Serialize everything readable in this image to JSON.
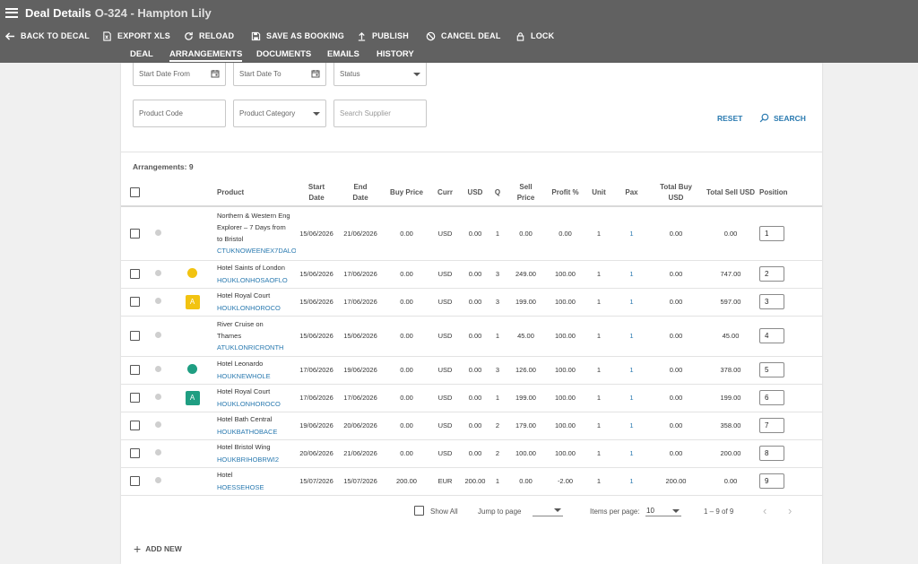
{
  "header": {
    "title": "Deal Details",
    "subtitle": "O-324 - Hampton Lily"
  },
  "toolbar": [
    {
      "label": "BACK TO DECAL",
      "icon": "arrow-left-icon"
    },
    {
      "label": "EXPORT XLS",
      "icon": "export-xls-icon"
    },
    {
      "label": "RELOAD",
      "icon": "reload-icon"
    },
    {
      "label": "SAVE AS BOOKING",
      "icon": "save-icon"
    },
    {
      "label": "PUBLISH",
      "icon": "upload-icon"
    },
    {
      "label": "CANCEL DEAL",
      "icon": "cancel-icon"
    },
    {
      "label": "LOCK",
      "icon": "lock-icon"
    }
  ],
  "tabs": [
    {
      "label": "DEAL"
    },
    {
      "label": "ARRANGEMENTS",
      "active": true
    },
    {
      "label": "DOCUMENTS"
    },
    {
      "label": "EMAILS"
    },
    {
      "label": "HISTORY"
    }
  ],
  "filters": {
    "start_date_from": "Start Date From",
    "start_date_to": "Start Date To",
    "status": "Status",
    "product_code": "Product Code",
    "product_category": "Product Category",
    "search_supplier": "Search Supplier",
    "reset": "RESET",
    "search": "SEARCH"
  },
  "arrangements_label": "Arrangements: 9",
  "columns": {
    "product": "Product",
    "start_date_1": "Start",
    "start_date_2": "Date",
    "end_date_1": "End",
    "end_date_2": "Date",
    "buy_price": "Buy Price",
    "curr": "Curr",
    "usd": "USD",
    "q": "Q",
    "sell_price_1": "Sell",
    "sell_price_2": "Price",
    "profit": "Profit %",
    "unit": "Unit",
    "pax": "Pax",
    "total_buy_1": "Total Buy",
    "total_buy_2": "USD",
    "total_sell": "Total Sell USD",
    "position": "Position"
  },
  "colors": {
    "yellow": "#f2c311",
    "teal": "#1f9e82",
    "link": "#2a7ab0",
    "header_bg": "#616161"
  },
  "rows": [
    {
      "name_lines": [
        "Northern & Western Eng",
        "Explorer – 7 Days from",
        "to Bristol"
      ],
      "code": "CTUKNOWEENEX7DALO",
      "start": "15/06/2026",
      "end": "21/06/2026",
      "buy": "0.00",
      "curr": "USD",
      "usd": "0.00",
      "q": "1",
      "sell": "0.00",
      "profit": "0.00",
      "unit": "1",
      "pax": "1",
      "total_buy": "0.00",
      "total_sell": "0.00",
      "position": "1",
      "marker": "none"
    },
    {
      "name_lines": [
        "Hotel Saints of London"
      ],
      "code": "HOUKLONHOSAOFLO",
      "start": "15/06/2026",
      "end": "17/06/2026",
      "buy": "0.00",
      "curr": "USD",
      "usd": "0.00",
      "q": "3",
      "sell": "249.00",
      "profit": "100.00",
      "unit": "1",
      "pax": "1",
      "total_buy": "0.00",
      "total_sell": "747.00",
      "position": "2",
      "marker": "yellow-dot"
    },
    {
      "name_lines": [
        "Hotel Royal Court"
      ],
      "code": "HOUKLONHOROCO",
      "start": "15/06/2026",
      "end": "17/06/2026",
      "buy": "0.00",
      "curr": "USD",
      "usd": "0.00",
      "q": "3",
      "sell": "199.00",
      "profit": "100.00",
      "unit": "1",
      "pax": "1",
      "total_buy": "0.00",
      "total_sell": "597.00",
      "position": "3",
      "marker": "yellow-badge",
      "badge": "A"
    },
    {
      "name_lines": [
        "River Cruise on",
        "Thames"
      ],
      "code": "ATUKLONRICRONTH",
      "start": "15/06/2026",
      "end": "15/06/2026",
      "buy": "0.00",
      "curr": "USD",
      "usd": "0.00",
      "q": "1",
      "sell": "45.00",
      "profit": "100.00",
      "unit": "1",
      "pax": "1",
      "total_buy": "0.00",
      "total_sell": "45.00",
      "position": "4",
      "marker": "none"
    },
    {
      "name_lines": [
        "Hotel Leonardo"
      ],
      "code": "HOUKNEWHOLE",
      "start": "17/06/2026",
      "end": "19/06/2026",
      "buy": "0.00",
      "curr": "USD",
      "usd": "0.00",
      "q": "3",
      "sell": "126.00",
      "profit": "100.00",
      "unit": "1",
      "pax": "1",
      "total_buy": "0.00",
      "total_sell": "378.00",
      "position": "5",
      "marker": "teal-dot"
    },
    {
      "name_lines": [
        "Hotel Royal Court"
      ],
      "code": "HOUKLONHOROCO",
      "start": "17/06/2026",
      "end": "17/06/2026",
      "buy": "0.00",
      "curr": "USD",
      "usd": "0.00",
      "q": "1",
      "sell": "199.00",
      "profit": "100.00",
      "unit": "1",
      "pax": "1",
      "total_buy": "0.00",
      "total_sell": "199.00",
      "position": "6",
      "marker": "teal-badge",
      "badge": "A"
    },
    {
      "name_lines": [
        "Hotel Bath Central"
      ],
      "code": "HOUKBATHOBACE",
      "start": "19/06/2026",
      "end": "20/06/2026",
      "buy": "0.00",
      "curr": "USD",
      "usd": "0.00",
      "q": "2",
      "sell": "179.00",
      "profit": "100.00",
      "unit": "1",
      "pax": "1",
      "total_buy": "0.00",
      "total_sell": "358.00",
      "position": "7",
      "marker": "none"
    },
    {
      "name_lines": [
        "Hotel Bristol Wing"
      ],
      "code": "HOUKBRIHOBRWI2",
      "start": "20/06/2026",
      "end": "21/06/2026",
      "buy": "0.00",
      "curr": "USD",
      "usd": "0.00",
      "q": "2",
      "sell": "100.00",
      "profit": "100.00",
      "unit": "1",
      "pax": "1",
      "total_buy": "0.00",
      "total_sell": "200.00",
      "position": "8",
      "marker": "none"
    },
    {
      "name_lines": [
        "Hotel"
      ],
      "code": "HOESSEHOSE",
      "start": "15/07/2026",
      "end": "15/07/2026",
      "buy": "200.00",
      "curr": "EUR",
      "usd": "200.00",
      "q": "1",
      "sell": "0.00",
      "profit": "-2.00",
      "unit": "1",
      "pax": "1",
      "total_buy": "200.00",
      "total_sell": "0.00",
      "position": "9",
      "marker": "none"
    }
  ],
  "footer": {
    "show_all": "Show All",
    "jump_to_page": "Jump to page",
    "items_per_page_label": "Items per page:",
    "items_per_page": "10",
    "range": "1 – 9 of 9",
    "add_new": "ADD NEW"
  }
}
